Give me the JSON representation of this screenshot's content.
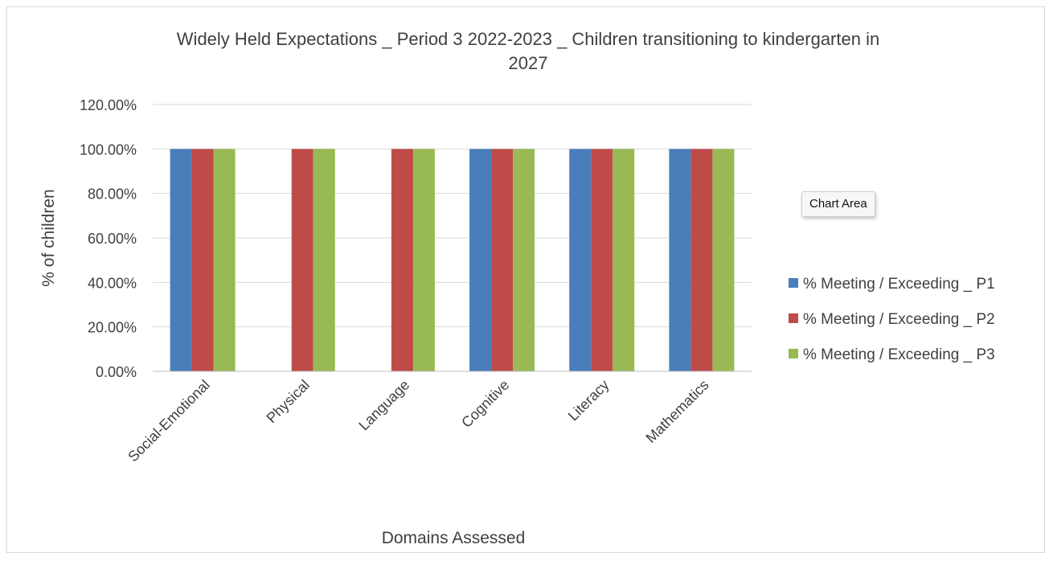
{
  "chart_data": {
    "type": "bar",
    "title": "Widely Held Expectations _ Period 3 2022-2023 _ Children transitioning to kindergarten in 2027",
    "title_lines": [
      "Widely Held Expectations _ Period 3 2022-2023 _ Children transitioning to kindergarten in",
      "2027"
    ],
    "xlabel": "Domains Assessed",
    "ylabel": "% of children",
    "categories": [
      "Social-Emotional",
      "Physical",
      "Language",
      "Cognitive",
      "Literacy",
      "Mathematics"
    ],
    "series": [
      {
        "name": "% Meeting / Exceeding _ P1",
        "color": "#4a7ebb",
        "values": [
          1.0,
          0,
          0,
          1.0,
          1.0,
          1.0
        ]
      },
      {
        "name": "% Meeting / Exceeding _ P2",
        "color": "#be4b48",
        "values": [
          1.0,
          1.0,
          1.0,
          1.0,
          1.0,
          1.0
        ]
      },
      {
        "name": "% Meeting / Exceeding _ P3",
        "color": "#98b954",
        "values": [
          1.0,
          1.0,
          1.0,
          1.0,
          1.0,
          1.0
        ]
      }
    ],
    "ylim": [
      0,
      1.2
    ],
    "yticks": [
      "0.00%",
      "20.00%",
      "40.00%",
      "60.00%",
      "80.00%",
      "100.00%",
      "120.00%"
    ],
    "grid": true,
    "legend_position": "right"
  },
  "tooltip": {
    "text": "Chart Area"
  }
}
